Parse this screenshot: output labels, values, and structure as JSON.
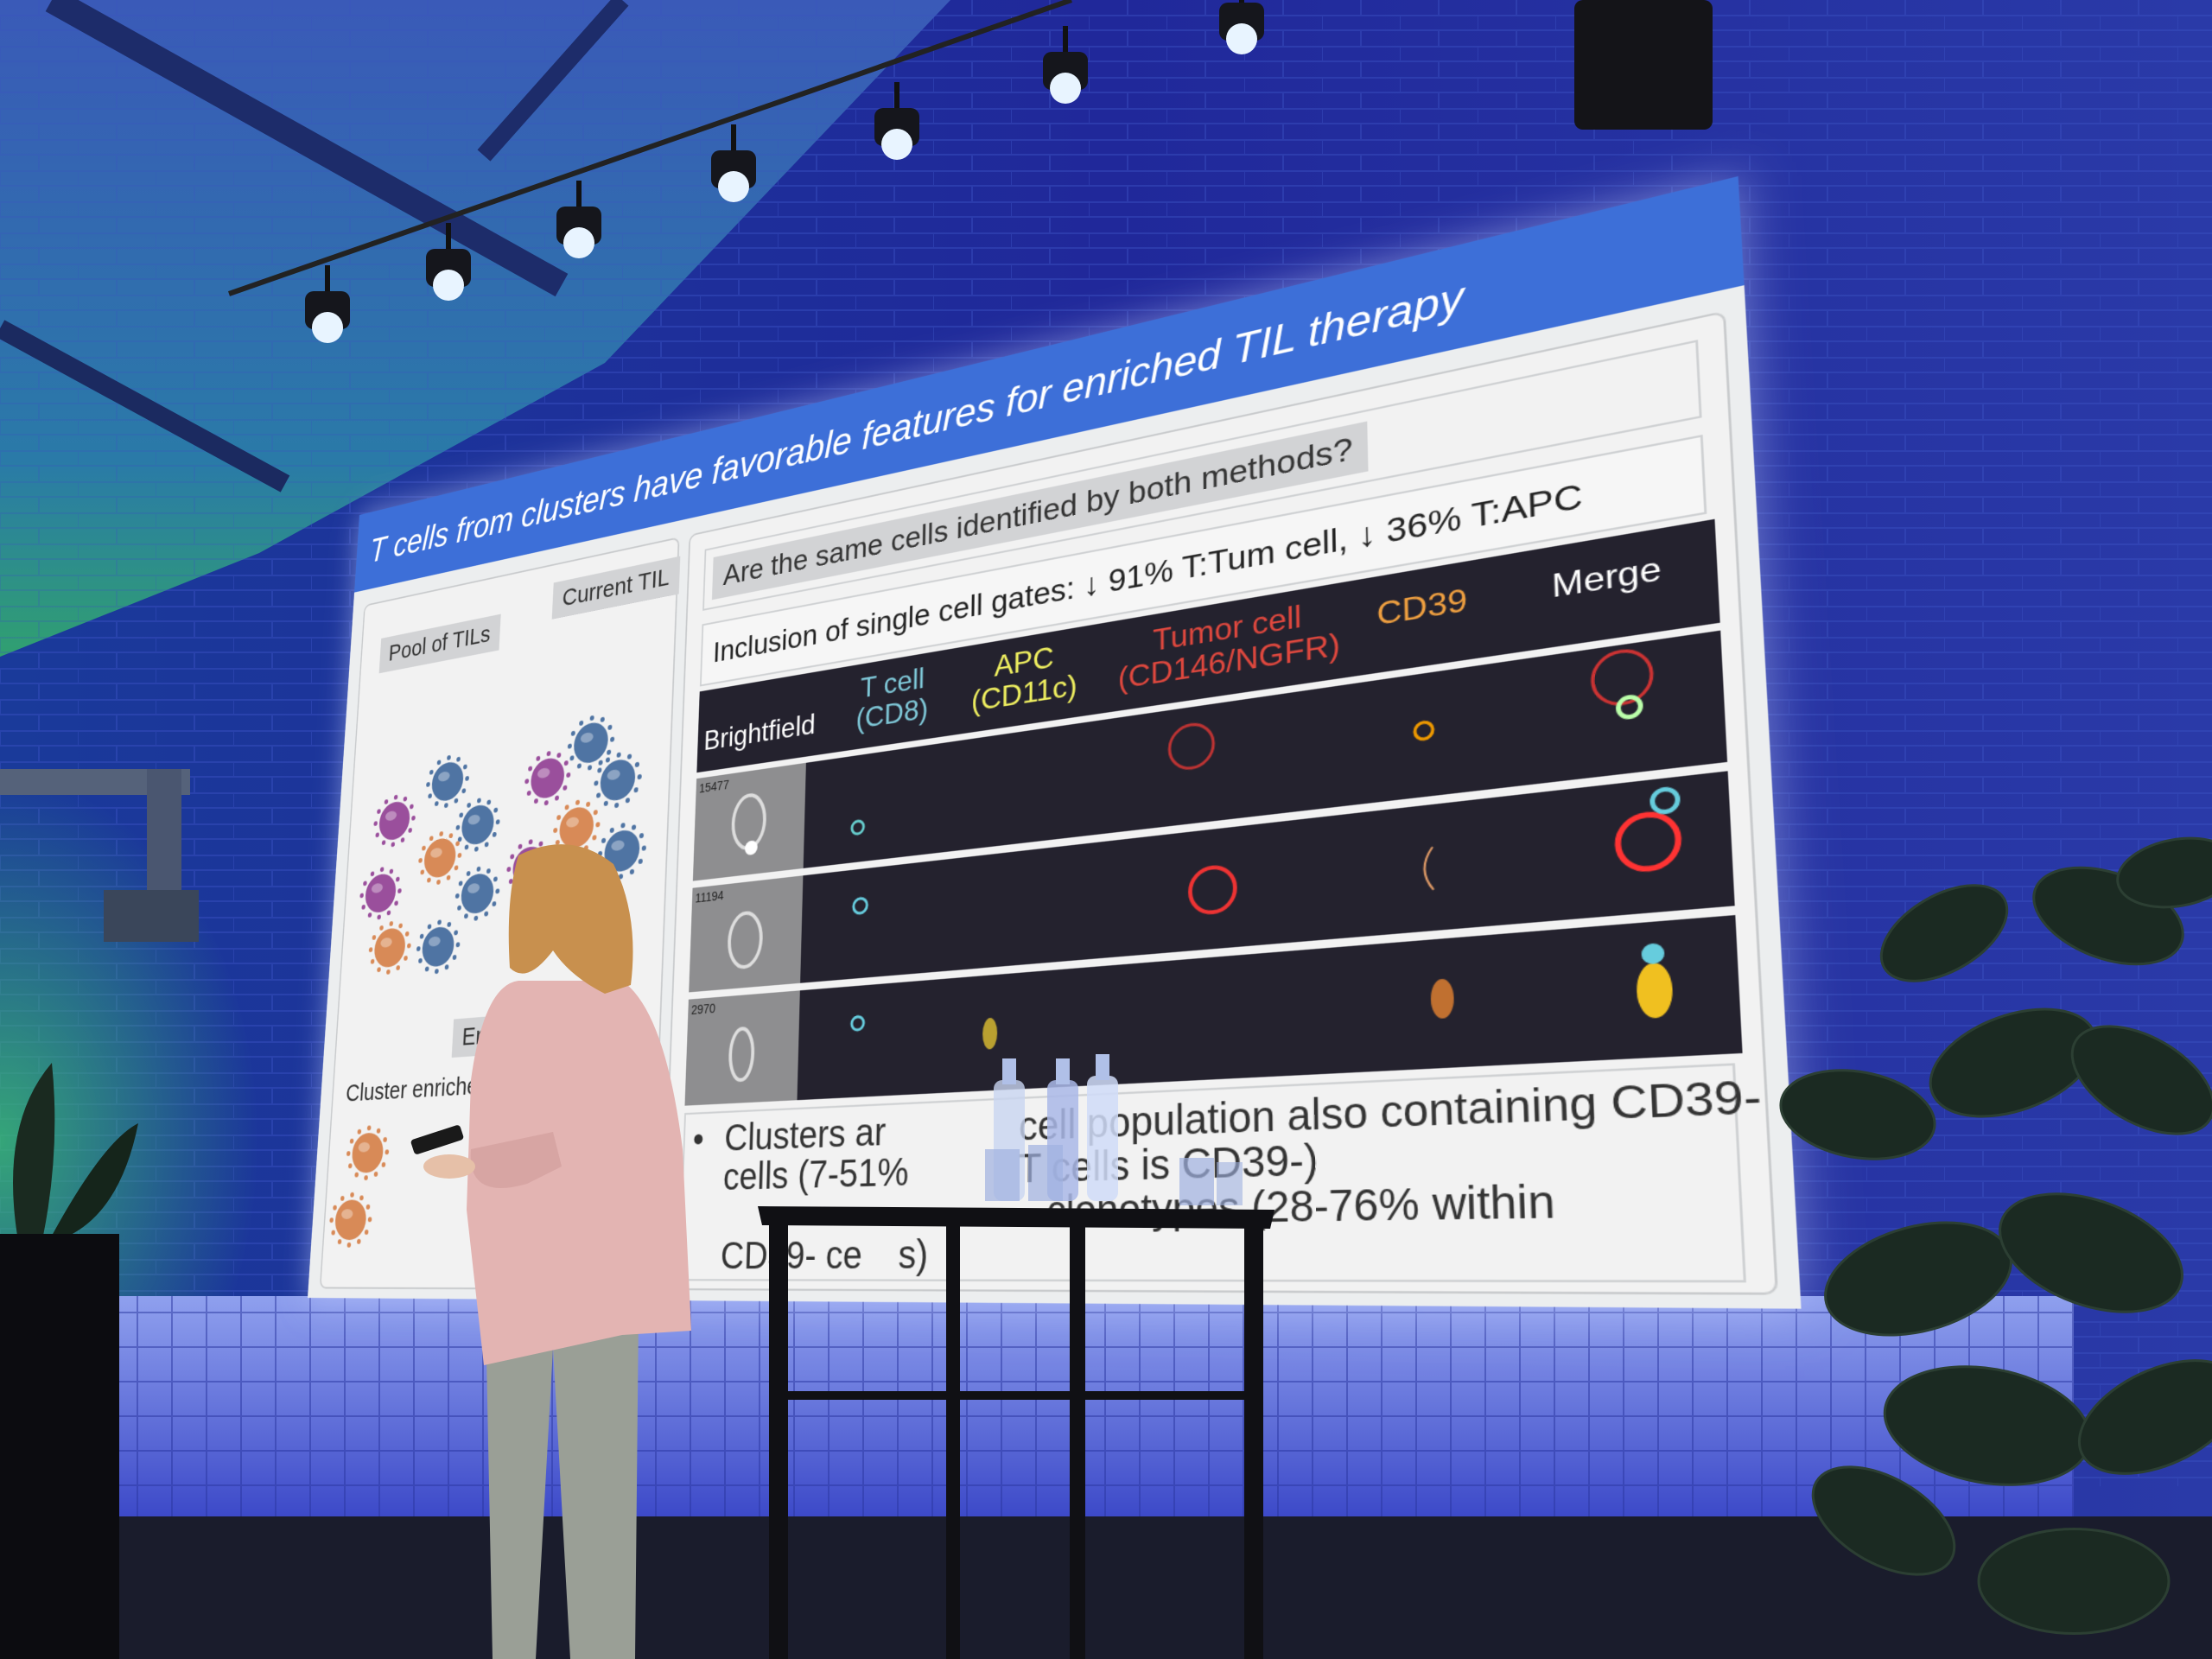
{
  "slide": {
    "title": "T cells from clusters have favorable features for enriched TIL therapy",
    "left_panel": {
      "pool_label": "Pool of TILs",
      "current_label": "Current TIL",
      "enriched_label": "Enri",
      "cluster_enriched_label": "Cluster enriched",
      "other_enriched_label": "enriched",
      "pool_cells": [
        "blue",
        "purple",
        "blue",
        "orange",
        "purple",
        "blue",
        "orange",
        "blue"
      ],
      "current_cells": [
        "blue",
        "purple",
        "blue",
        "orange",
        "purple",
        "blue",
        "orange",
        "blue"
      ]
    },
    "right_panel": {
      "question": "Are the same cells identified by both methods?",
      "inclusion": "Inclusion of single cell gates: ↓ 91% T:Tum cell, ↓ 36% T:APC",
      "columns": [
        {
          "label": "Brightfield",
          "color": "#ffffff"
        },
        {
          "label": "T cell\n(CD8)",
          "line1": "T cell",
          "line2": "(CD8)",
          "color": "#7fc8d8"
        },
        {
          "label": "APC\n(CD11c)",
          "line1": "APC",
          "line2": "(CD11c)",
          "color": "#f0f060"
        },
        {
          "label": "Tumor cell\n(CD146/NGFR)",
          "line1": "Tumor cell",
          "line2": "(CD146/NGFR)",
          "color": "#e0483e"
        },
        {
          "label": "CD39",
          "color": "#f0a040"
        },
        {
          "label": "Merge",
          "color": "#ffffff"
        }
      ],
      "rows": [
        {
          "id": "15477"
        },
        {
          "id": "11194"
        },
        {
          "id": "2970"
        }
      ],
      "bullets": [
        {
          "part1": "Clusters ar",
          "part2": "cell population also containing CD39-"
        },
        {
          "part1": "cells (7-51%",
          "part2": "T cells is CD39-)"
        },
        {
          "part1": "",
          "part2": "clonotypes (28-76% within"
        },
        {
          "part1": "CD39- ce",
          "part2": "s)"
        }
      ]
    }
  },
  "colors": {
    "title_bar": "#3d6fd8",
    "cell_blue": "#4f74a3",
    "cell_purple": "#9a4f9c",
    "cell_orange": "#d88a57",
    "wall": "#1b2a8a",
    "blazer": "#e4b3b3"
  }
}
